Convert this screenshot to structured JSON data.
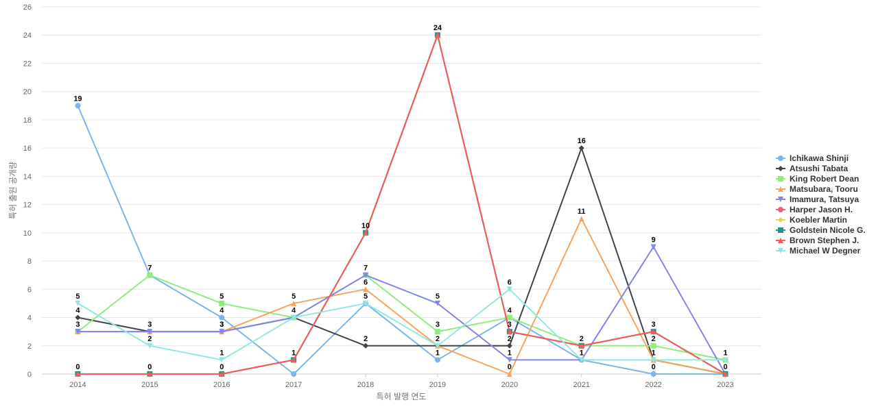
{
  "chart_data": {
    "type": "line",
    "title": "",
    "xlabel": "특허 발행 연도",
    "ylabel": "특허 출원 공개량",
    "ylim": [
      0,
      26
    ],
    "yticks": [
      0,
      2,
      4,
      6,
      8,
      10,
      12,
      14,
      16,
      18,
      20,
      22,
      24,
      26
    ],
    "categories": [
      "2014",
      "2015",
      "2016",
      "2017",
      "2018",
      "2019",
      "2020",
      "2021",
      "2022",
      "2023"
    ],
    "grid": true,
    "legend_position": "right",
    "series": [
      {
        "name": "Ichikawa Shinji",
        "color": "#7cb5ec",
        "marker": "circle",
        "values": [
          19,
          7,
          4,
          0,
          5,
          1,
          4,
          1,
          0,
          0
        ]
      },
      {
        "name": "Atsushi Tabata",
        "color": "#434348",
        "marker": "diamond",
        "values": [
          4,
          3,
          3,
          4,
          2,
          2,
          2,
          16,
          1,
          0
        ]
      },
      {
        "name": "King Robert Dean",
        "color": "#90ed7d",
        "marker": "square",
        "values": [
          3,
          7,
          5,
          4,
          7,
          3,
          4,
          2,
          2,
          1
        ]
      },
      {
        "name": "Matsubara, Tooru",
        "color": "#f7a35c",
        "marker": "triangle",
        "values": [
          3,
          3,
          3,
          5,
          6,
          2,
          0,
          11,
          1,
          0
        ]
      },
      {
        "name": "Imamura, Tatsuya",
        "color": "#8085e9",
        "marker": "triangle-down",
        "values": [
          3,
          3,
          3,
          4,
          7,
          5,
          1,
          1,
          9,
          0
        ]
      },
      {
        "name": "Harper Jason H.",
        "color": "#f15c80",
        "marker": "circle",
        "values": [
          0,
          0,
          0,
          1,
          10,
          24,
          3,
          2,
          3,
          0
        ]
      },
      {
        "name": "Koebler Martin",
        "color": "#e4d354",
        "marker": "diamond",
        "values": [
          0,
          0,
          0,
          1,
          10,
          24,
          3,
          2,
          3,
          0
        ]
      },
      {
        "name": "Goldstein Nicole G.",
        "color": "#2b908f",
        "marker": "square",
        "values": [
          0,
          0,
          0,
          1,
          10,
          24,
          3,
          2,
          3,
          0
        ]
      },
      {
        "name": "Brown Stephen J.",
        "color": "#f45b5b",
        "marker": "triangle",
        "values": [
          0,
          0,
          0,
          1,
          10,
          24,
          3,
          2,
          3,
          0
        ]
      },
      {
        "name": "Michael W Degner",
        "color": "#91e8e1",
        "marker": "triangle-down",
        "values": [
          5,
          2,
          1,
          4,
          5,
          2,
          6,
          1,
          1,
          1
        ]
      }
    ],
    "data_labels": [
      [
        "19",
        "5",
        "4",
        "3",
        "0"
      ],
      [
        "7",
        "3",
        "2",
        "0"
      ],
      [
        "5",
        "4",
        "3",
        "3",
        "1",
        "0"
      ],
      [
        "5",
        "4",
        "1"
      ],
      [
        "10",
        "7",
        "6",
        "5",
        "2"
      ],
      [
        "24",
        "5",
        "3",
        "2",
        "1"
      ],
      [
        "6",
        "4",
        "3",
        "2",
        "1",
        "0"
      ],
      [
        "16",
        "11",
        "2",
        "1"
      ],
      [
        "9",
        "3",
        "2",
        "1",
        "0"
      ],
      [
        "1",
        "0"
      ]
    ]
  }
}
